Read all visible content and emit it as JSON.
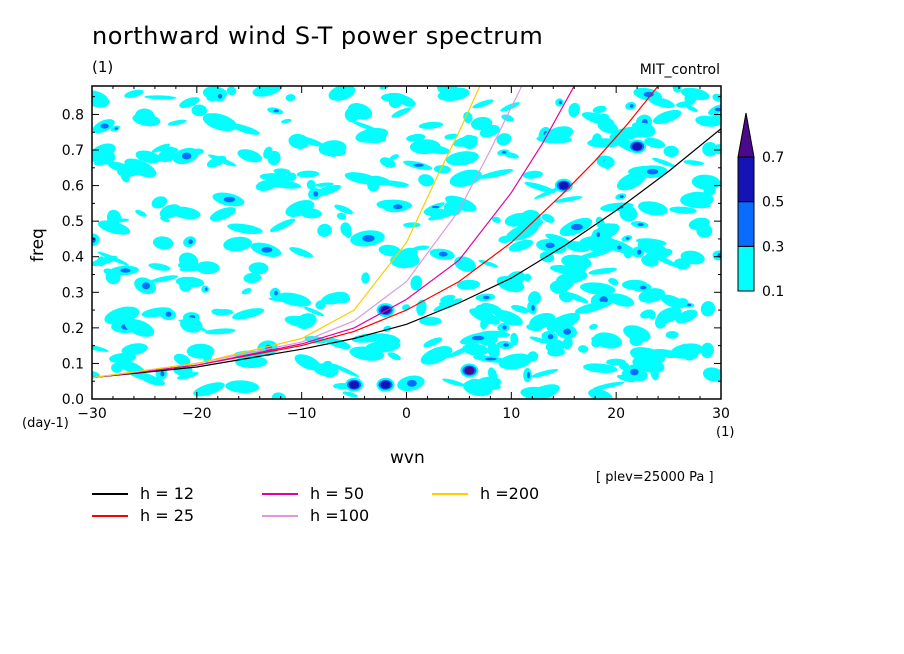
{
  "header": {
    "title": "northward wind S-T power spectrum",
    "units_top": "(1)",
    "run_name": "MIT_control",
    "units_y": "(day-1)",
    "units_x": "(1)",
    "plev": "[ plev=25000 Pa ]"
  },
  "chart_data": {
    "type": "heatmap",
    "title": "northward wind S-T power spectrum",
    "xlabel": "wvn",
    "ylabel": "freq",
    "xlim": [
      -30,
      30
    ],
    "ylim": [
      0,
      0.88
    ],
    "xticks": [
      -30,
      -20,
      -10,
      0,
      10,
      20,
      30
    ],
    "yticks": [
      0.0,
      0.1,
      0.2,
      0.3,
      0.4,
      0.5,
      0.6,
      0.7,
      0.8
    ],
    "colorbar": {
      "levels": [
        0.1,
        0.3,
        0.5,
        0.7
      ],
      "labels": [
        "0.1",
        "0.3",
        "0.5",
        "0.7"
      ],
      "colors": [
        "#00ffff",
        "#0a6bff",
        "#1414b4",
        "#4b0a8c"
      ]
    },
    "notable_features": [
      {
        "x": 6,
        "y": 0.08,
        "level": 0.7
      },
      {
        "x": -2,
        "y": 0.25,
        "level": 0.5
      },
      {
        "x": -5,
        "y": 0.04,
        "level": 0.5
      },
      {
        "x": -2,
        "y": 0.04,
        "level": 0.5
      },
      {
        "x": 22,
        "y": 0.71,
        "level": 0.5
      },
      {
        "x": 15,
        "y": 0.6,
        "level": 0.5
      }
    ],
    "series": [
      {
        "name": "h = 12",
        "color": "#000000",
        "x": [
          -30,
          -20,
          -10,
          -5,
          0,
          5,
          10,
          15,
          20,
          25,
          30
        ],
        "y": [
          0.06,
          0.09,
          0.14,
          0.17,
          0.21,
          0.27,
          0.34,
          0.43,
          0.53,
          0.64,
          0.76
        ]
      },
      {
        "name": "h = 25",
        "color": "#ff0000",
        "x": [
          -30,
          -20,
          -10,
          -5,
          0,
          5,
          10,
          15,
          18,
          21,
          24
        ],
        "y": [
          0.06,
          0.095,
          0.15,
          0.19,
          0.25,
          0.33,
          0.44,
          0.58,
          0.67,
          0.77,
          0.88
        ]
      },
      {
        "name": "h = 50",
        "color": "#e600a0",
        "x": [
          -30,
          -20,
          -10,
          -5,
          0,
          5,
          10,
          13,
          16
        ],
        "y": [
          0.06,
          0.095,
          0.155,
          0.2,
          0.28,
          0.39,
          0.58,
          0.72,
          0.88
        ]
      },
      {
        "name": "h =100",
        "color": "#dd99dd",
        "x": [
          -30,
          -20,
          -10,
          -5,
          0,
          5,
          8,
          11
        ],
        "y": [
          0.06,
          0.1,
          0.16,
          0.22,
          0.33,
          0.53,
          0.7,
          0.88
        ]
      },
      {
        "name": "h =200",
        "color": "#ffcc00",
        "x": [
          -30,
          -20,
          -10,
          -5,
          0,
          3,
          5,
          7
        ],
        "y": [
          0.06,
          0.1,
          0.17,
          0.25,
          0.44,
          0.63,
          0.75,
          0.88
        ]
      }
    ]
  },
  "legend": [
    {
      "label": "h = 12",
      "color": "#000000"
    },
    {
      "label": "h = 25",
      "color": "#ff0000"
    },
    {
      "label": "h = 50",
      "color": "#e600a0"
    },
    {
      "label": "h =100",
      "color": "#dd99dd"
    },
    {
      "label": "h =200",
      "color": "#ffcc00"
    }
  ]
}
